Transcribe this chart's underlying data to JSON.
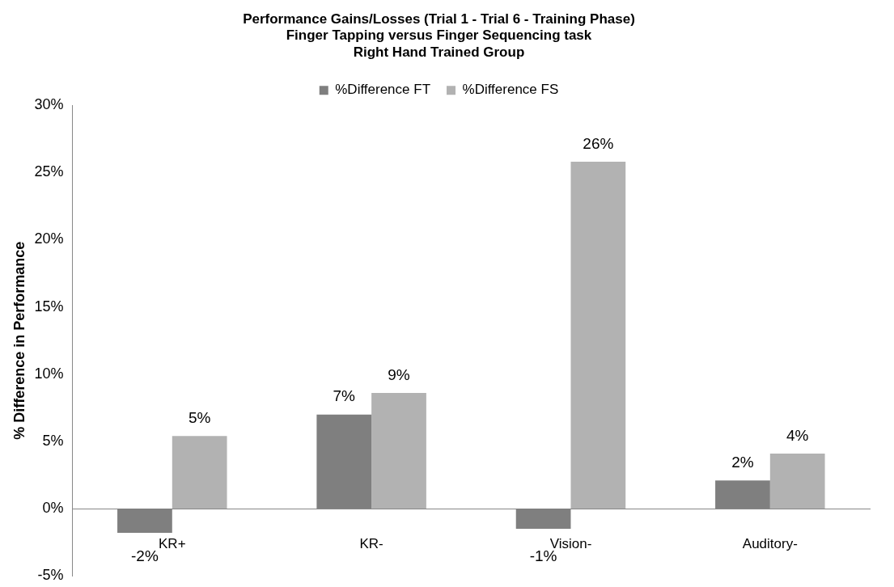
{
  "chart_data": {
    "type": "bar",
    "title": "Performance Gains/Losses (Trial 1 - Trial 6 - Training Phase)",
    "subtitle": "Finger Tapping versus Finger Sequencing task\nRight Hand Trained Group",
    "ylabel": "% Difference in Performance",
    "categories": [
      "KR+",
      "KR-",
      "Vision-",
      "Auditory-"
    ],
    "series": [
      {
        "name": "%Difference FT",
        "color": "#7f7f7f",
        "values": [
          -1.8,
          7.0,
          -1.5,
          2.1
        ],
        "value_labels": [
          "-2%",
          "7%",
          "-1%",
          "2%"
        ]
      },
      {
        "name": "%Difference FS",
        "color": "#b2b2b2",
        "values": [
          5.4,
          8.6,
          25.8,
          4.1
        ],
        "value_labels": [
          "5%",
          "9%",
          "26%",
          "4%"
        ]
      }
    ],
    "ylim": [
      -5,
      30
    ],
    "yticks": [
      {
        "value": -5,
        "label": "-5%"
      },
      {
        "value": 0,
        "label": "0%"
      },
      {
        "value": 5,
        "label": "5%"
      },
      {
        "value": 10,
        "label": "10%"
      },
      {
        "value": 15,
        "label": "15%"
      },
      {
        "value": 20,
        "label": "20%"
      },
      {
        "value": 25,
        "label": "25%"
      },
      {
        "value": 30,
        "label": "30%"
      }
    ],
    "grid": false,
    "legend": "top"
  }
}
